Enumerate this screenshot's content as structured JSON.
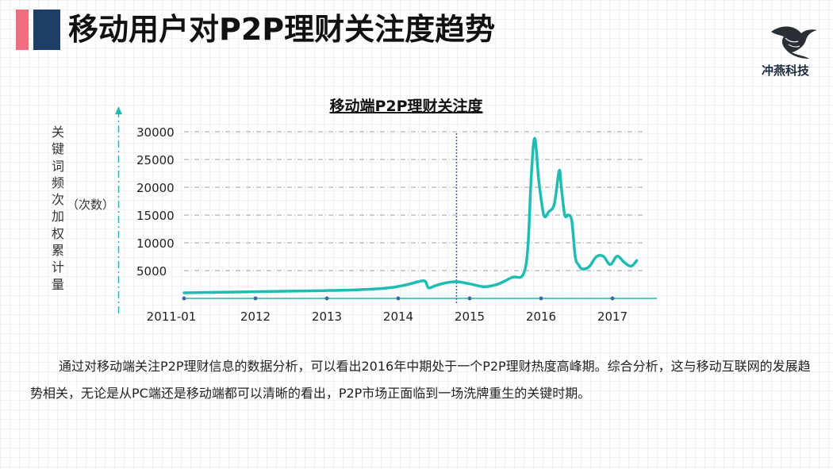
{
  "header": {
    "title": "移动用户对P2P理财关注度趋势",
    "brand": "冲燕科技",
    "brand_icon": "swallow-logo-icon"
  },
  "chart_data": {
    "type": "line",
    "title": "移动端P2P理财关注度",
    "ylabel_vertical": [
      "关",
      "键",
      "词",
      "频",
      "次",
      "加",
      "权",
      "累",
      "计",
      "量"
    ],
    "ylabel_unit": "（次数）",
    "xlabel": "",
    "x_ticks": [
      "2011-01",
      "2012",
      "2013",
      "2014",
      "2015",
      "2016",
      "2017"
    ],
    "y_ticks": [
      5000,
      10000,
      15000,
      20000,
      25000,
      30000
    ],
    "xlim": [
      2011.0,
      2017.7
    ],
    "ylim": [
      0,
      30000
    ],
    "grid": true,
    "marker_line_x": 2014.9,
    "line_color": "#1fbcb4",
    "series": [
      {
        "x": [
          2011.0,
          2011.5,
          2012.0,
          2012.5,
          2013.0,
          2013.5,
          2013.8,
          2014.0,
          2014.2,
          2014.35,
          2014.45,
          2014.5,
          2014.6,
          2014.75,
          2014.9,
          2015.1,
          2015.3,
          2015.5,
          2015.7,
          2015.85,
          2015.92,
          2015.97,
          2016.02,
          2016.08,
          2016.15,
          2016.22,
          2016.3,
          2016.37,
          2016.4,
          2016.45,
          2016.5,
          2016.55,
          2016.6,
          2016.65,
          2016.7,
          2016.8,
          2016.9,
          2017.0,
          2017.1,
          2017.2,
          2017.3,
          2017.4,
          2017.48
        ],
        "y": [
          1000,
          1100,
          1200,
          1300,
          1400,
          1550,
          1750,
          2000,
          2500,
          3000,
          3100,
          1900,
          2300,
          2800,
          3000,
          2600,
          2100,
          2600,
          3800,
          4200,
          9000,
          22000,
          28800,
          21000,
          15000,
          15600,
          17000,
          23000,
          20000,
          15000,
          15000,
          14000,
          7500,
          6000,
          5300,
          5700,
          7500,
          7600,
          6100,
          7600,
          6500,
          5800,
          6800
        ]
      }
    ]
  },
  "body_text": "通过对移动端关注P2P理财信息的数据分析，可以看出2016年中期处于一个P2P理财热度高峰期。综合分析，这与移动互联网的发展趋势相关，无论是从PC端还是移动端都可以清晰的看出，P2P市场正面临到一场洗牌重生的关键时期。"
}
